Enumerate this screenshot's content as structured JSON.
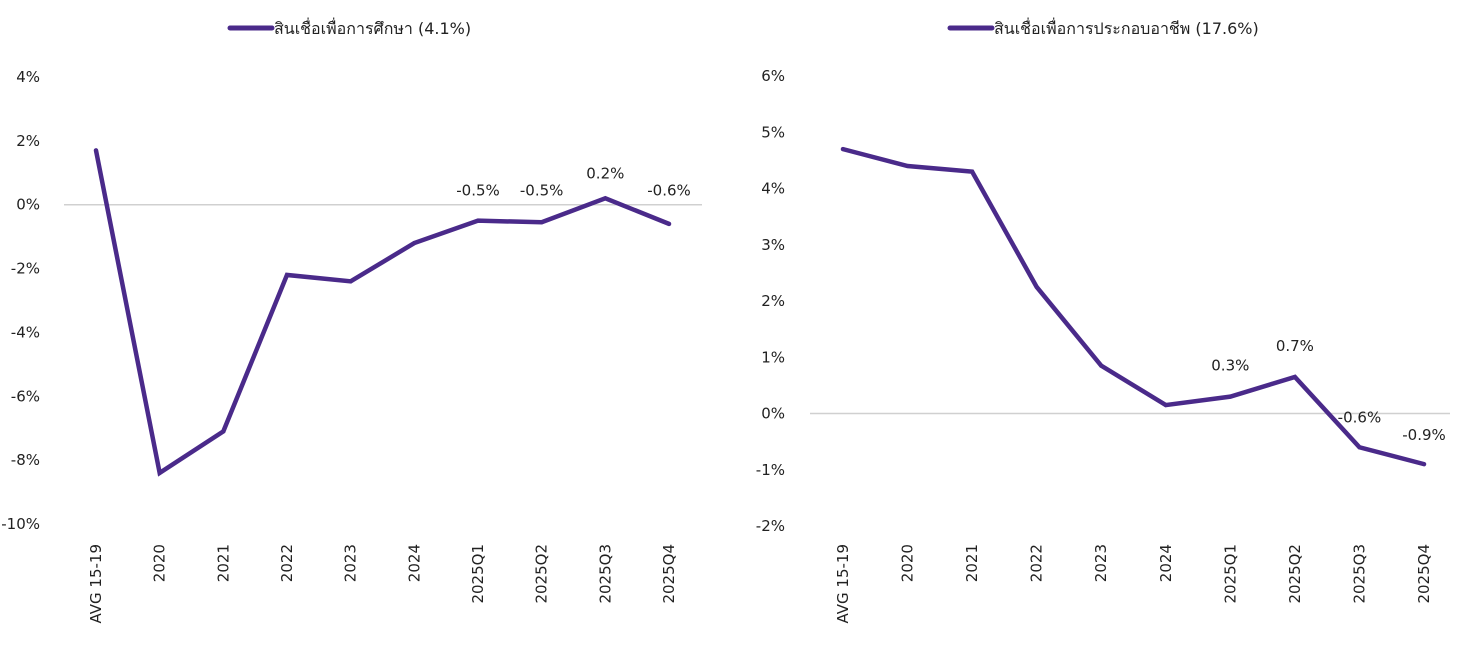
{
  "colors": {
    "series": "#4a2a8a",
    "zero_line": "#d0d0d0",
    "text": "#222222"
  },
  "chart_data": [
    {
      "type": "line",
      "title": "",
      "legend": {
        "label": "สินเชื่อเพื่อการศึกษา (4.1%)",
        "position": "top"
      },
      "xlabel": "",
      "ylabel": "",
      "categories": [
        "AVG 15-19",
        "2020",
        "2021",
        "2022",
        "2023",
        "2024",
        "2025Q1",
        "2025Q2",
        "2025Q3",
        "2025Q4"
      ],
      "series": [
        {
          "name": "สินเชื่อเพื่อการศึกษา (4.1%)",
          "values": [
            1.7,
            -8.4,
            -7.1,
            -2.2,
            -2.4,
            -1.2,
            -0.5,
            -0.55,
            0.2,
            -0.6
          ]
        }
      ],
      "data_labels": [
        null,
        null,
        null,
        null,
        null,
        null,
        "-0.5%",
        "-0.5%",
        "0.2%",
        "-0.6%"
      ],
      "ylim": [
        -10,
        4
      ],
      "yticks": [
        4,
        2,
        0,
        -2,
        -4,
        -6,
        -8,
        -10
      ],
      "ytick_labels": [
        "4%",
        "2%",
        "0%",
        "-2%",
        "-4%",
        "-6%",
        "-8%",
        "-10%"
      ],
      "zero_line": true,
      "grid": false
    },
    {
      "type": "line",
      "title": "",
      "legend": {
        "label": "สินเชื่อเพื่อการประกอบอาชีพ (17.6%)",
        "position": "top"
      },
      "xlabel": "",
      "ylabel": "",
      "categories": [
        "AVG 15-19",
        "2020",
        "2021",
        "2022",
        "2023",
        "2024",
        "2025Q1",
        "2025Q2",
        "2025Q3",
        "2025Q4"
      ],
      "series": [
        {
          "name": "สินเชื่อเพื่อการประกอบอาชีพ (17.6%)",
          "values": [
            4.7,
            4.4,
            4.3,
            2.25,
            0.85,
            0.15,
            0.3,
            0.65,
            -0.6,
            -0.9
          ]
        }
      ],
      "data_labels": [
        null,
        null,
        null,
        null,
        null,
        null,
        "0.3%",
        "0.7%",
        "-0.6%",
        "-0.9%"
      ],
      "ylim": [
        -2,
        6
      ],
      "yticks": [
        6,
        5,
        4,
        3,
        2,
        1,
        0,
        -1,
        -2
      ],
      "ytick_labels": [
        "6%",
        "5%",
        "4%",
        "3%",
        "2%",
        "1%",
        "0%",
        "-1%",
        "-2%"
      ],
      "zero_line": true,
      "grid": false
    }
  ]
}
